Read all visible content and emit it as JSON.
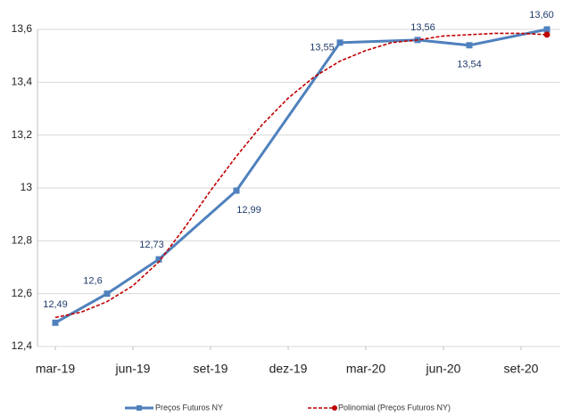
{
  "chart_data": {
    "type": "line",
    "x_format": "YYYY-MM",
    "ylim": [
      12.4,
      13.6
    ],
    "yticks": [
      {
        "value": 12.4,
        "label": "12,4"
      },
      {
        "value": 12.6,
        "label": "12,6"
      },
      {
        "value": 12.8,
        "label": "12,8"
      },
      13,
      {
        "value": 13.2,
        "label": "13,2"
      },
      {
        "value": 13.4,
        "label": "13,4"
      },
      {
        "value": 13.6,
        "label": "13,6"
      }
    ],
    "xticks": [
      {
        "value": "2019-03",
        "label": "mar-19"
      },
      {
        "value": "2019-06",
        "label": "jun-19"
      },
      {
        "value": "2019-09",
        "label": "set-19"
      },
      {
        "value": "2019-12",
        "label": "dez-19"
      },
      {
        "value": "2020-03",
        "label": "mar-20"
      },
      {
        "value": "2020-06",
        "label": "jun-20"
      },
      {
        "value": "2020-09",
        "label": "set-20"
      }
    ],
    "grid": true,
    "legend": "bottom",
    "series": [
      {
        "name": "Preços Futuros NY",
        "color": "#4f81bd",
        "x": [
          "2019-03",
          "2019-05",
          "2019-07",
          "2019-10",
          "2020-02",
          "2020-05",
          "2020-07",
          "2020-10"
        ],
        "values": [
          12.49,
          12.6,
          12.73,
          12.99,
          13.55,
          13.56,
          13.54,
          13.6
        ],
        "value_labels": [
          "12,49",
          "12,6",
          "12,73",
          "12,99",
          "13,55",
          "13,56",
          "13,54",
          "13,60"
        ]
      },
      {
        "name": "Polinomial (Preços Futuros NY)",
        "color": "#c00000",
        "dashed": true,
        "x": [
          "2019-03",
          "2019-04",
          "2019-05",
          "2019-06",
          "2019-07",
          "2019-08",
          "2019-09",
          "2019-10",
          "2019-11",
          "2019-12",
          "2020-01",
          "2020-02",
          "2020-03",
          "2020-04",
          "2020-05",
          "2020-06",
          "2020-07",
          "2020-08",
          "2020-09",
          "2020-10"
        ],
        "values": [
          12.51,
          12.53,
          12.57,
          12.63,
          12.72,
          12.85,
          12.99,
          13.12,
          13.24,
          13.34,
          13.42,
          13.48,
          13.52,
          13.55,
          13.56,
          13.575,
          13.58,
          13.585,
          13.585,
          13.58
        ]
      }
    ]
  }
}
